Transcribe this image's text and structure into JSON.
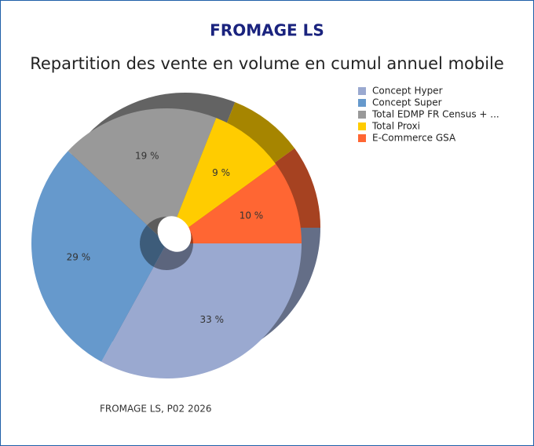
{
  "chart_data": {
    "type": "pie",
    "title": "FROMAGE LS",
    "subtitle": "Repartition des vente en volume en cumul annuel mobile",
    "caption": "FROMAGE LS, P02 2026",
    "categories": [
      "Concept Hyper",
      "Concept Super",
      "Total EDMP FR Census + ...",
      "Total Proxi",
      "E-Commerce GSA"
    ],
    "values": [
      33,
      29,
      19,
      9,
      10
    ],
    "value_labels": [
      "33 %",
      "29 %",
      "19 %",
      "9 %",
      "10 %"
    ],
    "colors": [
      "#9aa9d0",
      "#6699cc",
      "#999999",
      "#ffcc00",
      "#ff6633"
    ],
    "legend": "top-right"
  }
}
